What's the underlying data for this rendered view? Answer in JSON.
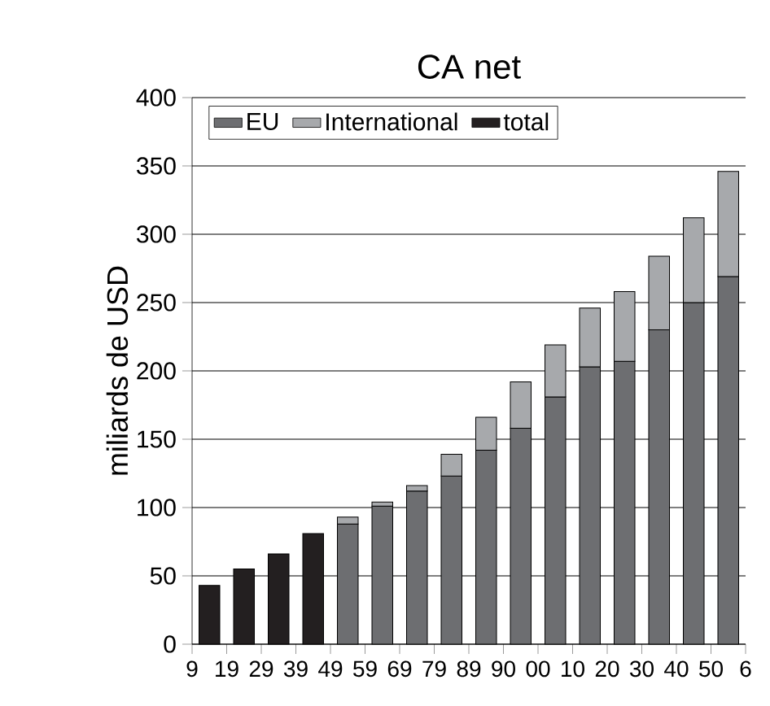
{
  "chart_data": {
    "type": "bar",
    "title": "CA net",
    "ylabel": "miliards de USD",
    "categories": [
      null,
      null,
      null,
      null,
      null,
      null,
      null,
      null,
      null,
      null,
      null,
      null,
      null,
      null,
      null,
      null
    ],
    "annotations": [
      "9",
      "19",
      "29",
      "39",
      "49",
      "59",
      "69",
      "79",
      "89",
      "90",
      "00",
      "10",
      "20",
      "30",
      "40",
      "50",
      "6"
    ],
    "stacked": true,
    "series": [
      {
        "name": "EU",
        "color": "#6d6e71",
        "values": [
          null,
          null,
          null,
          null,
          88,
          101,
          112,
          123,
          142,
          158,
          181,
          203,
          207,
          230,
          250,
          269
        ]
      },
      {
        "name": "International",
        "color": "#a7a9ac",
        "values": [
          null,
          null,
          null,
          null,
          5,
          3,
          4,
          16,
          24,
          34,
          38,
          43,
          51,
          54,
          62,
          77
        ]
      },
      {
        "name": "total",
        "color": "#231f20",
        "values": [
          43,
          55,
          66,
          81,
          null,
          null,
          null,
          null,
          null,
          null,
          null,
          null,
          null,
          null,
          null,
          null
        ]
      }
    ],
    "ylim": [
      0,
      400
    ],
    "yticks": [
      0,
      50,
      100,
      150,
      200,
      250,
      300,
      350,
      400
    ],
    "grid": "y",
    "legend": "top left"
  }
}
